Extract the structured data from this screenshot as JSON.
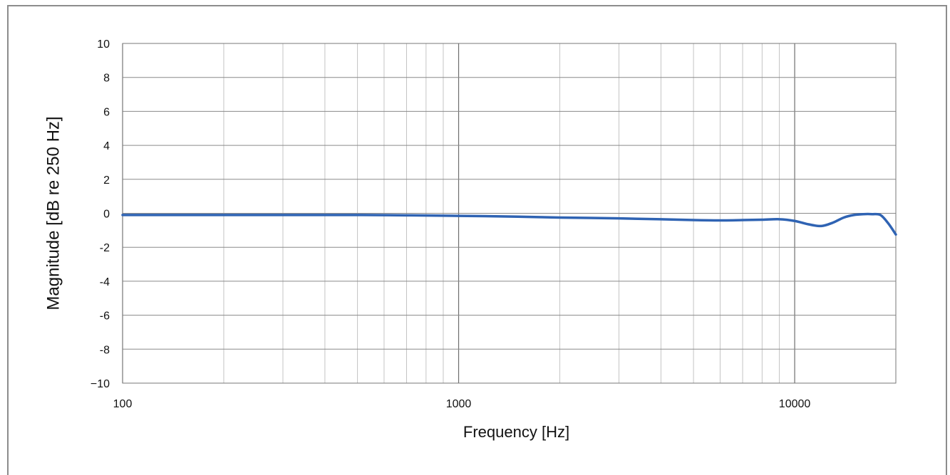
{
  "chart_data": {
    "type": "line",
    "title": "",
    "xlabel": "Frequency [Hz]",
    "ylabel": "Magnitude [dB re 250 Hz]",
    "x_scale": "log",
    "xlim": [
      100,
      20000
    ],
    "ylim": [
      -10,
      10
    ],
    "x_ticks": [
      100,
      1000,
      10000
    ],
    "x_tick_labels": [
      "100",
      "1000",
      "10000"
    ],
    "y_ticks": [
      10,
      8,
      6,
      4,
      2,
      0,
      -2,
      -4,
      -6,
      -8,
      -10
    ],
    "y_tick_labels": [
      "10",
      "8",
      "6",
      "4",
      "2",
      "0",
      "-2",
      "-4",
      "-6",
      "-8",
      "−10"
    ],
    "grid": true,
    "line_color": "#2f63b3",
    "series": [
      {
        "x": [
          100,
          200,
          300,
          500,
          700,
          1000,
          1500,
          2000,
          3000,
          4000,
          5000,
          6000,
          7000,
          8000,
          9000,
          10000,
          11000,
          12000,
          13000,
          14000,
          15000,
          16000,
          17000,
          18000,
          19000,
          20000
        ],
        "y": [
          -0.1,
          -0.1,
          -0.1,
          -0.1,
          -0.12,
          -0.15,
          -0.2,
          -0.25,
          -0.3,
          -0.35,
          -0.4,
          -0.42,
          -0.4,
          -0.38,
          -0.35,
          -0.45,
          -0.65,
          -0.75,
          -0.55,
          -0.25,
          -0.1,
          -0.05,
          -0.05,
          -0.1,
          -0.6,
          -1.25
        ]
      }
    ]
  }
}
